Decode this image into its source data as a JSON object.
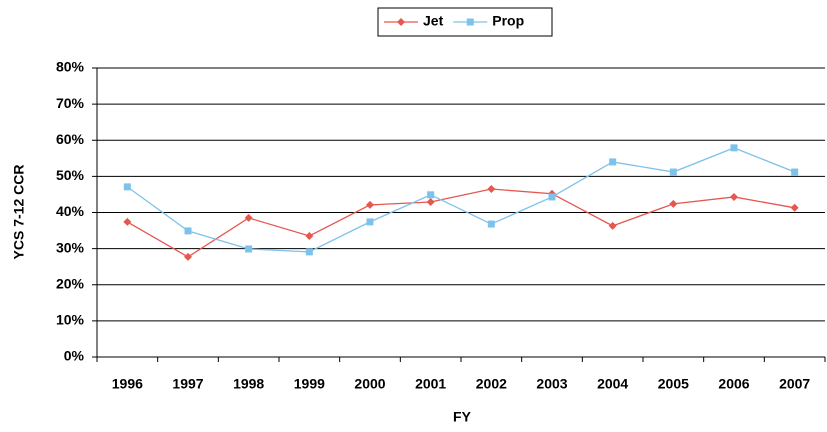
{
  "chart_data": {
    "type": "line",
    "x_label": "FY",
    "y_label": "YCS 7-12 CCR",
    "categories": [
      "1996",
      "1997",
      "1998",
      "1999",
      "2000",
      "2001",
      "2002",
      "2003",
      "2004",
      "2005",
      "2006",
      "2007"
    ],
    "series": [
      {
        "name": "Jet",
        "color": "#e5574f",
        "marker": "diamond",
        "values": [
          37.4,
          27.7,
          38.5,
          33.5,
          42.1,
          42.9,
          46.5,
          45.2,
          36.3,
          42.4,
          44.3,
          41.3
        ]
      },
      {
        "name": "Prop",
        "color": "#7cc2ea",
        "marker": "square",
        "values": [
          47.1,
          34.9,
          29.9,
          29.1,
          37.4,
          44.9,
          36.8,
          44.3,
          54.0,
          51.2,
          57.9,
          51.2
        ]
      }
    ],
    "ylim": [
      0,
      80
    ],
    "yticks": [
      {
        "value": 0,
        "label": "0%"
      },
      {
        "value": 10,
        "label": "10%"
      },
      {
        "value": 20,
        "label": "20%"
      },
      {
        "value": 30,
        "label": "30%"
      },
      {
        "value": 40,
        "label": "40%"
      },
      {
        "value": 50,
        "label": "50%"
      },
      {
        "value": 60,
        "label": "60%"
      },
      {
        "value": 70,
        "label": "70%"
      },
      {
        "value": 80,
        "label": "80%"
      }
    ],
    "grid": true,
    "legend": "top"
  }
}
